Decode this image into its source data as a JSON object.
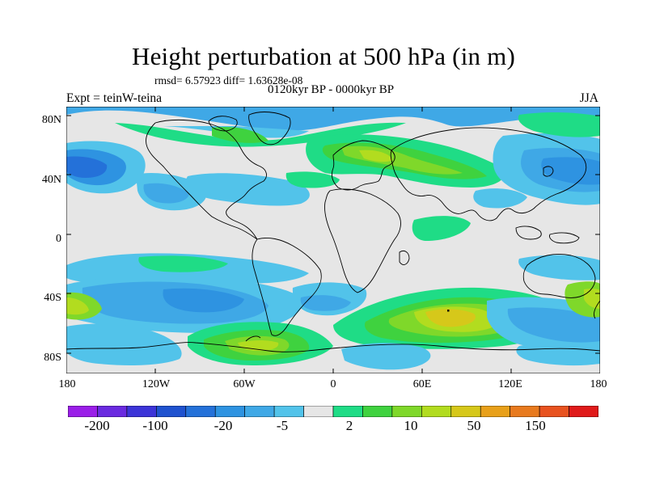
{
  "title": "Height perturbation at 500 hPa (in m)",
  "stats": "rmsd= 6.57923 diff= 1.63628e-08",
  "subtitle": "0120kyr BP - 0000kyr BP",
  "experiment": "Expt = teinW-teina",
  "season": "JJA",
  "lat_labels": [
    "80N",
    "40N",
    "0",
    "40S",
    "80S"
  ],
  "lon_labels": [
    "180",
    "120W",
    "60W",
    "0",
    "60E",
    "120E",
    "180"
  ],
  "colorbar": {
    "labels": [
      "-200",
      "-100",
      "-20",
      "-5",
      "2",
      "10",
      "50",
      "150"
    ],
    "colors": [
      "#9a1ee8",
      "#6a2ae0",
      "#3c34d8",
      "#1f52cf",
      "#2471d9",
      "#2e93e1",
      "#3fa8e6",
      "#52c3ea",
      "#e6e6e6",
      "#1fdc86",
      "#3fd23f",
      "#7fd82a",
      "#b2dc1f",
      "#d6c81a",
      "#e8a01a",
      "#e87a1e",
      "#e8521f",
      "#e01a1a"
    ]
  },
  "colors": {
    "land_outline": "#000000",
    "zero_band": "#e6e6e6"
  }
}
